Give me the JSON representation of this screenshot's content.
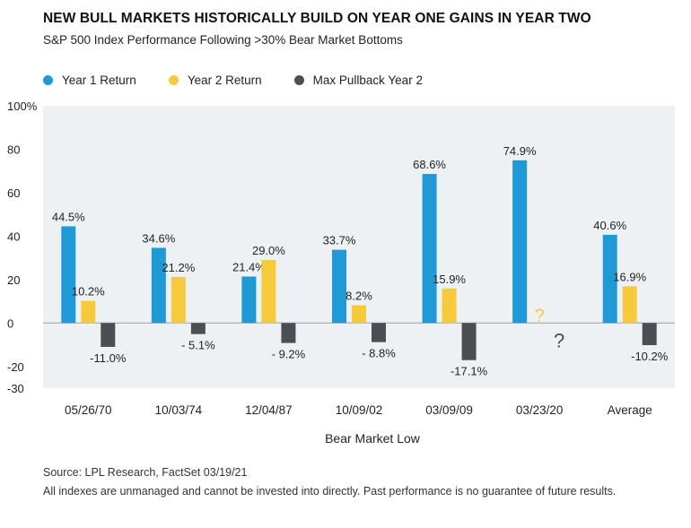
{
  "title": "NEW BULL MARKETS HISTORICALLY BUILD ON YEAR ONE GAINS IN YEAR TWO",
  "subtitle": "S&P 500 Index Performance Following >30% Bear Market Bottoms",
  "colors": {
    "year1": "#1f9ad6",
    "year2": "#f5cb3c",
    "pullback": "#4b4f54",
    "plot_bg": "#eef1f4",
    "zero_line": "#9aa0a6"
  },
  "legend": [
    {
      "label": "Year 1 Return",
      "color": "#1f9ad6"
    },
    {
      "label": "Year 2 Return",
      "color": "#f5cb3c"
    },
    {
      "label": "Max Pullback Year 2",
      "color": "#4b4f54"
    }
  ],
  "chart_data": {
    "type": "bar",
    "categories": [
      "05/26/70",
      "10/03/74",
      "12/04/87",
      "10/09/02",
      "03/09/09",
      "03/23/20",
      "Average"
    ],
    "series": [
      {
        "name": "Year 1 Return",
        "values": [
          44.5,
          34.6,
          21.4,
          33.7,
          68.6,
          74.9,
          40.6
        ],
        "labels": [
          "44.5%",
          "34.6%",
          "21.4%",
          "33.7%",
          "68.6%",
          "74.9%",
          "40.6%"
        ]
      },
      {
        "name": "Year 2 Return",
        "values": [
          10.2,
          21.2,
          29.0,
          8.2,
          15.9,
          null,
          16.9
        ],
        "labels": [
          "10.2%",
          "21.2%",
          "29.0%",
          "8.2%",
          "15.9%",
          "?",
          "16.9%"
        ]
      },
      {
        "name": "Max Pullback Year 2",
        "values": [
          -11.0,
          -5.1,
          -9.2,
          -8.8,
          -17.1,
          null,
          -10.2
        ],
        "labels": [
          "-11.0%",
          "- 5.1%",
          "- 9.2%",
          "- 8.8%",
          "-17.1%",
          "?",
          "-10.2%"
        ]
      }
    ],
    "yticks": [
      "100%",
      "80",
      "60",
      "40",
      "20",
      "0",
      "-20",
      "-30"
    ],
    "ytick_values": [
      100,
      80,
      60,
      40,
      20,
      0,
      -20,
      -30
    ],
    "ylim": [
      -30,
      100
    ],
    "xlabel": "Bear Market Low",
    "ylabel": ""
  },
  "source": "Source: LPL Research, FactSet   03/19/21",
  "disclaimer": "All indexes are unmanaged and cannot be invested into directly. Past performance is no guarantee of future results."
}
